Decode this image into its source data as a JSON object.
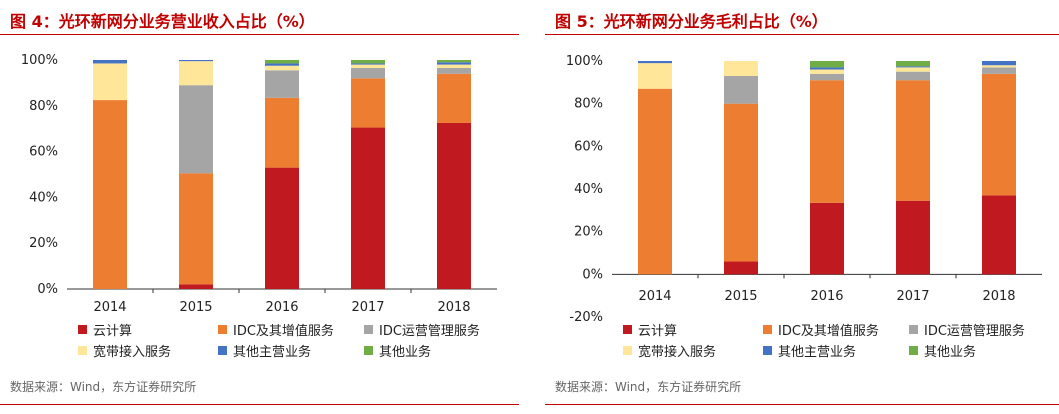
{
  "charts": [
    {
      "title": "图 4：光环新网分业务营业收入占比（%）",
      "source": "数据来源：Wind，东方证券研究所",
      "chart_data": {
        "type": "bar",
        "stacked": true,
        "title": "图 4：光环新网分业务营业收入占比（%）",
        "categories": [
          "2014",
          "2015",
          "2016",
          "2017",
          "2018"
        ],
        "ylim": [
          0,
          100
        ],
        "yticks": [
          0,
          20,
          40,
          60,
          80,
          100
        ],
        "ytick_labels": [
          "0%",
          "20%",
          "40%",
          "60%",
          "80%",
          "100%"
        ],
        "series": [
          {
            "name": "云计算",
            "color": "#c0191f",
            "values": [
              0,
              2,
              53,
              70.5,
              72.5
            ]
          },
          {
            "name": "IDC及其增值服务",
            "color": "#ed7d31",
            "values": [
              82.5,
              48.5,
              30.5,
              21.5,
              21.5
            ]
          },
          {
            "name": "IDC运营管理服务",
            "color": "#a5a5a5",
            "values": [
              0,
              38.5,
              12,
              4.5,
              2.5
            ]
          },
          {
            "name": "宽带接入服务",
            "color": "#ffe699",
            "values": [
              16,
              10.5,
              2,
              1.5,
              1.5
            ]
          },
          {
            "name": "其他主营业务",
            "color": "#4472c4",
            "values": [
              1.5,
              0.5,
              1,
              0.5,
              1
            ]
          },
          {
            "name": "其他业务",
            "color": "#70ad47",
            "values": [
              0,
              0,
              1.5,
              1.5,
              1
            ]
          }
        ]
      }
    },
    {
      "title": "图 5：光环新网分业务毛利占比（%）",
      "source": "数据来源：Wind，东方证券研究所",
      "chart_data": {
        "type": "bar",
        "stacked": true,
        "title": "图 5：光环新网分业务毛利占比（%）",
        "categories": [
          "2014",
          "2015",
          "2016",
          "2017",
          "2018"
        ],
        "ylim": [
          -20,
          100
        ],
        "yticks": [
          -20,
          0,
          20,
          40,
          60,
          80,
          100
        ],
        "ytick_labels": [
          "-20%",
          "0%",
          "20%",
          "40%",
          "60%",
          "80%",
          "100%"
        ],
        "series": [
          {
            "name": "云计算",
            "color": "#c0191f",
            "values": [
              0,
              6,
              33.5,
              34.5,
              37
            ]
          },
          {
            "name": "IDC及其增值服务",
            "color": "#ed7d31",
            "values": [
              87,
              74,
              57.5,
              56.5,
              57
            ]
          },
          {
            "name": "IDC运营管理服务",
            "color": "#a5a5a5",
            "values": [
              0,
              13,
              3,
              4,
              3
            ]
          },
          {
            "name": "宽带接入服务",
            "color": "#ffe699",
            "values": [
              12,
              7,
              2,
              2,
              1
            ]
          },
          {
            "name": "其他主营业务",
            "color": "#4472c4",
            "values": [
              1,
              0,
              1,
              0.5,
              2
            ]
          },
          {
            "name": "其他业务",
            "color": "#70ad47",
            "values": [
              0,
              0,
              3,
              2.5,
              0
            ]
          }
        ]
      }
    }
  ]
}
